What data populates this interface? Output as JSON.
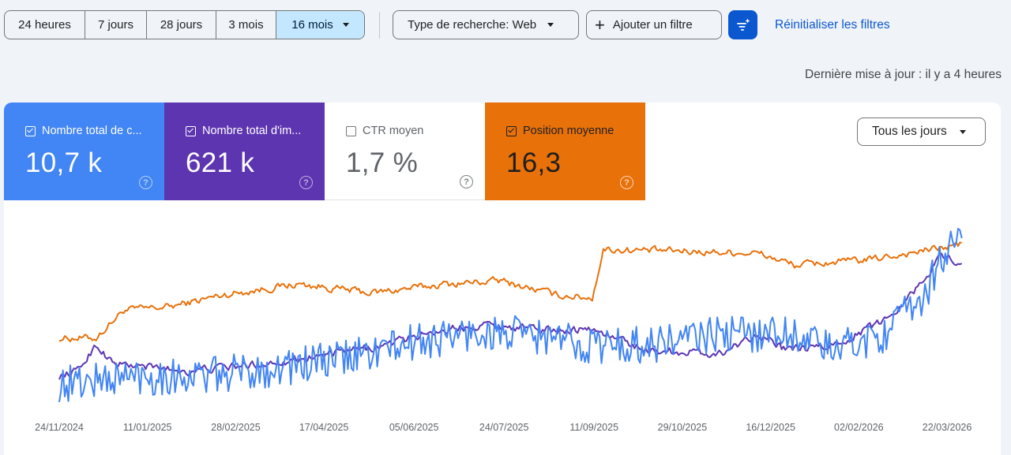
{
  "ranges": [
    {
      "label": "24 heures",
      "active": false
    },
    {
      "label": "7 jours",
      "active": false
    },
    {
      "label": "28 jours",
      "active": false
    },
    {
      "label": "3 mois",
      "active": false
    },
    {
      "label": "16 mois",
      "active": true
    }
  ],
  "filters": {
    "search_type": "Type de recherche: Web",
    "add_filter": "Ajouter un filtre",
    "reset": "Réinitialiser les filtres"
  },
  "last_update": "Dernière mise à jour : il y a 4 heures",
  "metrics": [
    {
      "label": "Nombre total de c...",
      "value": "10,7 k",
      "checked": true,
      "color": "#4285f4"
    },
    {
      "label": "Nombre total d'im...",
      "value": "621 k",
      "checked": true,
      "color": "#5e35b1"
    },
    {
      "label": "CTR moyen",
      "value": "1,7 %",
      "checked": false,
      "color": "#ffffff"
    },
    {
      "label": "Position moyenne",
      "value": "16,3",
      "checked": true,
      "color": "#e8710a"
    }
  ],
  "granularity": "Tous les jours",
  "icons": {
    "dropdown": "chevron-down-icon",
    "add": "plus-icon",
    "ai_filter": "sparkle-filter-icon",
    "help": "help-circle-icon",
    "checkbox": "checkbox-icon"
  },
  "chart_data": {
    "type": "line",
    "x_tick_labels": [
      "24/11/2024",
      "11/01/2025",
      "28/02/2025",
      "17/04/2025",
      "05/06/2025",
      "24/07/2025",
      "11/09/2025",
      "29/10/2025",
      "16/12/2025",
      "02/02/2026",
      "22/03/2026"
    ],
    "x_range": [
      "2024-11-24",
      "2026-03-28"
    ],
    "y_axis_visible": false,
    "grid": false,
    "series": [
      {
        "metric": "Position moyenne",
        "color": "#e8710a",
        "noise": 0.035,
        "keypoints": [
          [
            0,
            0.37
          ],
          [
            20,
            0.37
          ],
          [
            35,
            0.53
          ],
          [
            60,
            0.55
          ],
          [
            90,
            0.62
          ],
          [
            130,
            0.68
          ],
          [
            170,
            0.63
          ],
          [
            210,
            0.68
          ],
          [
            240,
            0.7
          ],
          [
            270,
            0.62
          ],
          [
            290,
            0.6
          ],
          [
            296,
            0.88
          ],
          [
            340,
            0.87
          ],
          [
            380,
            0.86
          ],
          [
            400,
            0.79
          ],
          [
            440,
            0.82
          ],
          [
            480,
            0.89
          ],
          [
            491,
            0.91
          ]
        ]
      },
      {
        "metric": "Nombre total d'impressions",
        "color": "#5e35b1",
        "noise": 0.04,
        "keypoints": [
          [
            0,
            0.15
          ],
          [
            10,
            0.18
          ],
          [
            20,
            0.33
          ],
          [
            30,
            0.22
          ],
          [
            70,
            0.18
          ],
          [
            110,
            0.22
          ],
          [
            150,
            0.28
          ],
          [
            175,
            0.32
          ],
          [
            200,
            0.4
          ],
          [
            230,
            0.45
          ],
          [
            260,
            0.42
          ],
          [
            290,
            0.42
          ],
          [
            320,
            0.3
          ],
          [
            360,
            0.28
          ],
          [
            380,
            0.4
          ],
          [
            395,
            0.3
          ],
          [
            420,
            0.32
          ],
          [
            450,
            0.48
          ],
          [
            470,
            0.7
          ],
          [
            480,
            0.85
          ],
          [
            491,
            0.8
          ]
        ]
      },
      {
        "metric": "Nombre total de clics",
        "color": "#4285f4",
        "noise": 0.11,
        "keypoints": [
          [
            0,
            0.1
          ],
          [
            40,
            0.15
          ],
          [
            80,
            0.15
          ],
          [
            120,
            0.2
          ],
          [
            150,
            0.24
          ],
          [
            175,
            0.3
          ],
          [
            200,
            0.36
          ],
          [
            230,
            0.4
          ],
          [
            260,
            0.38
          ],
          [
            290,
            0.33
          ],
          [
            320,
            0.33
          ],
          [
            350,
            0.38
          ],
          [
            380,
            0.4
          ],
          [
            400,
            0.4
          ],
          [
            420,
            0.3
          ],
          [
            450,
            0.4
          ],
          [
            470,
            0.6
          ],
          [
            480,
            0.85
          ],
          [
            491,
            0.92
          ]
        ]
      }
    ]
  }
}
